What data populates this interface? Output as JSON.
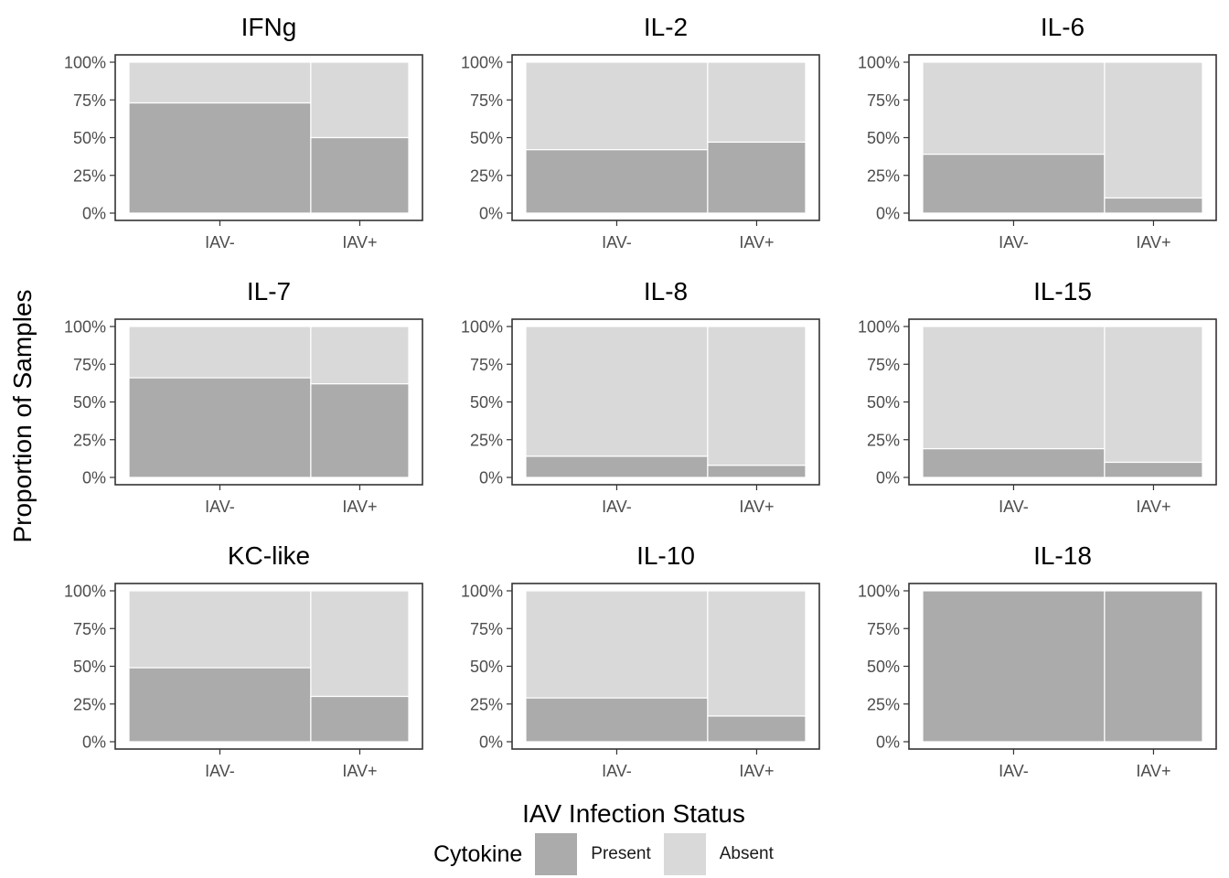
{
  "chart_data": {
    "type": "bar",
    "stacked": true,
    "variable_width": true,
    "y_tick_labels": [
      "0%",
      "25%",
      "50%",
      "75%",
      "100%"
    ],
    "ylim": [
      0,
      1
    ],
    "xlabel": "IAV Infection Status",
    "ylabel": "Proportion of Samples",
    "categories": [
      "IAV-",
      "IAV+"
    ],
    "category_width_fraction": [
      0.65,
      0.35
    ],
    "legend": {
      "title": "Cytokine",
      "position": "bottom",
      "entries": [
        {
          "label": "Present",
          "color": "#ababab"
        },
        {
          "label": "Absent",
          "color": "#d9d9d9"
        }
      ]
    },
    "panels": [
      {
        "title": "IFNg",
        "present": [
          0.73,
          0.5
        ]
      },
      {
        "title": "IL-2",
        "present": [
          0.42,
          0.47
        ]
      },
      {
        "title": "IL-6",
        "present": [
          0.39,
          0.1
        ]
      },
      {
        "title": "IL-7",
        "present": [
          0.66,
          0.62
        ]
      },
      {
        "title": "IL-8",
        "present": [
          0.14,
          0.08
        ]
      },
      {
        "title": "IL-15",
        "present": [
          0.19,
          0.1
        ]
      },
      {
        "title": "KC-like",
        "present": [
          0.49,
          0.3
        ]
      },
      {
        "title": "IL-10",
        "present": [
          0.29,
          0.17
        ]
      },
      {
        "title": "IL-18",
        "present": [
          1.0,
          1.0
        ]
      }
    ]
  }
}
